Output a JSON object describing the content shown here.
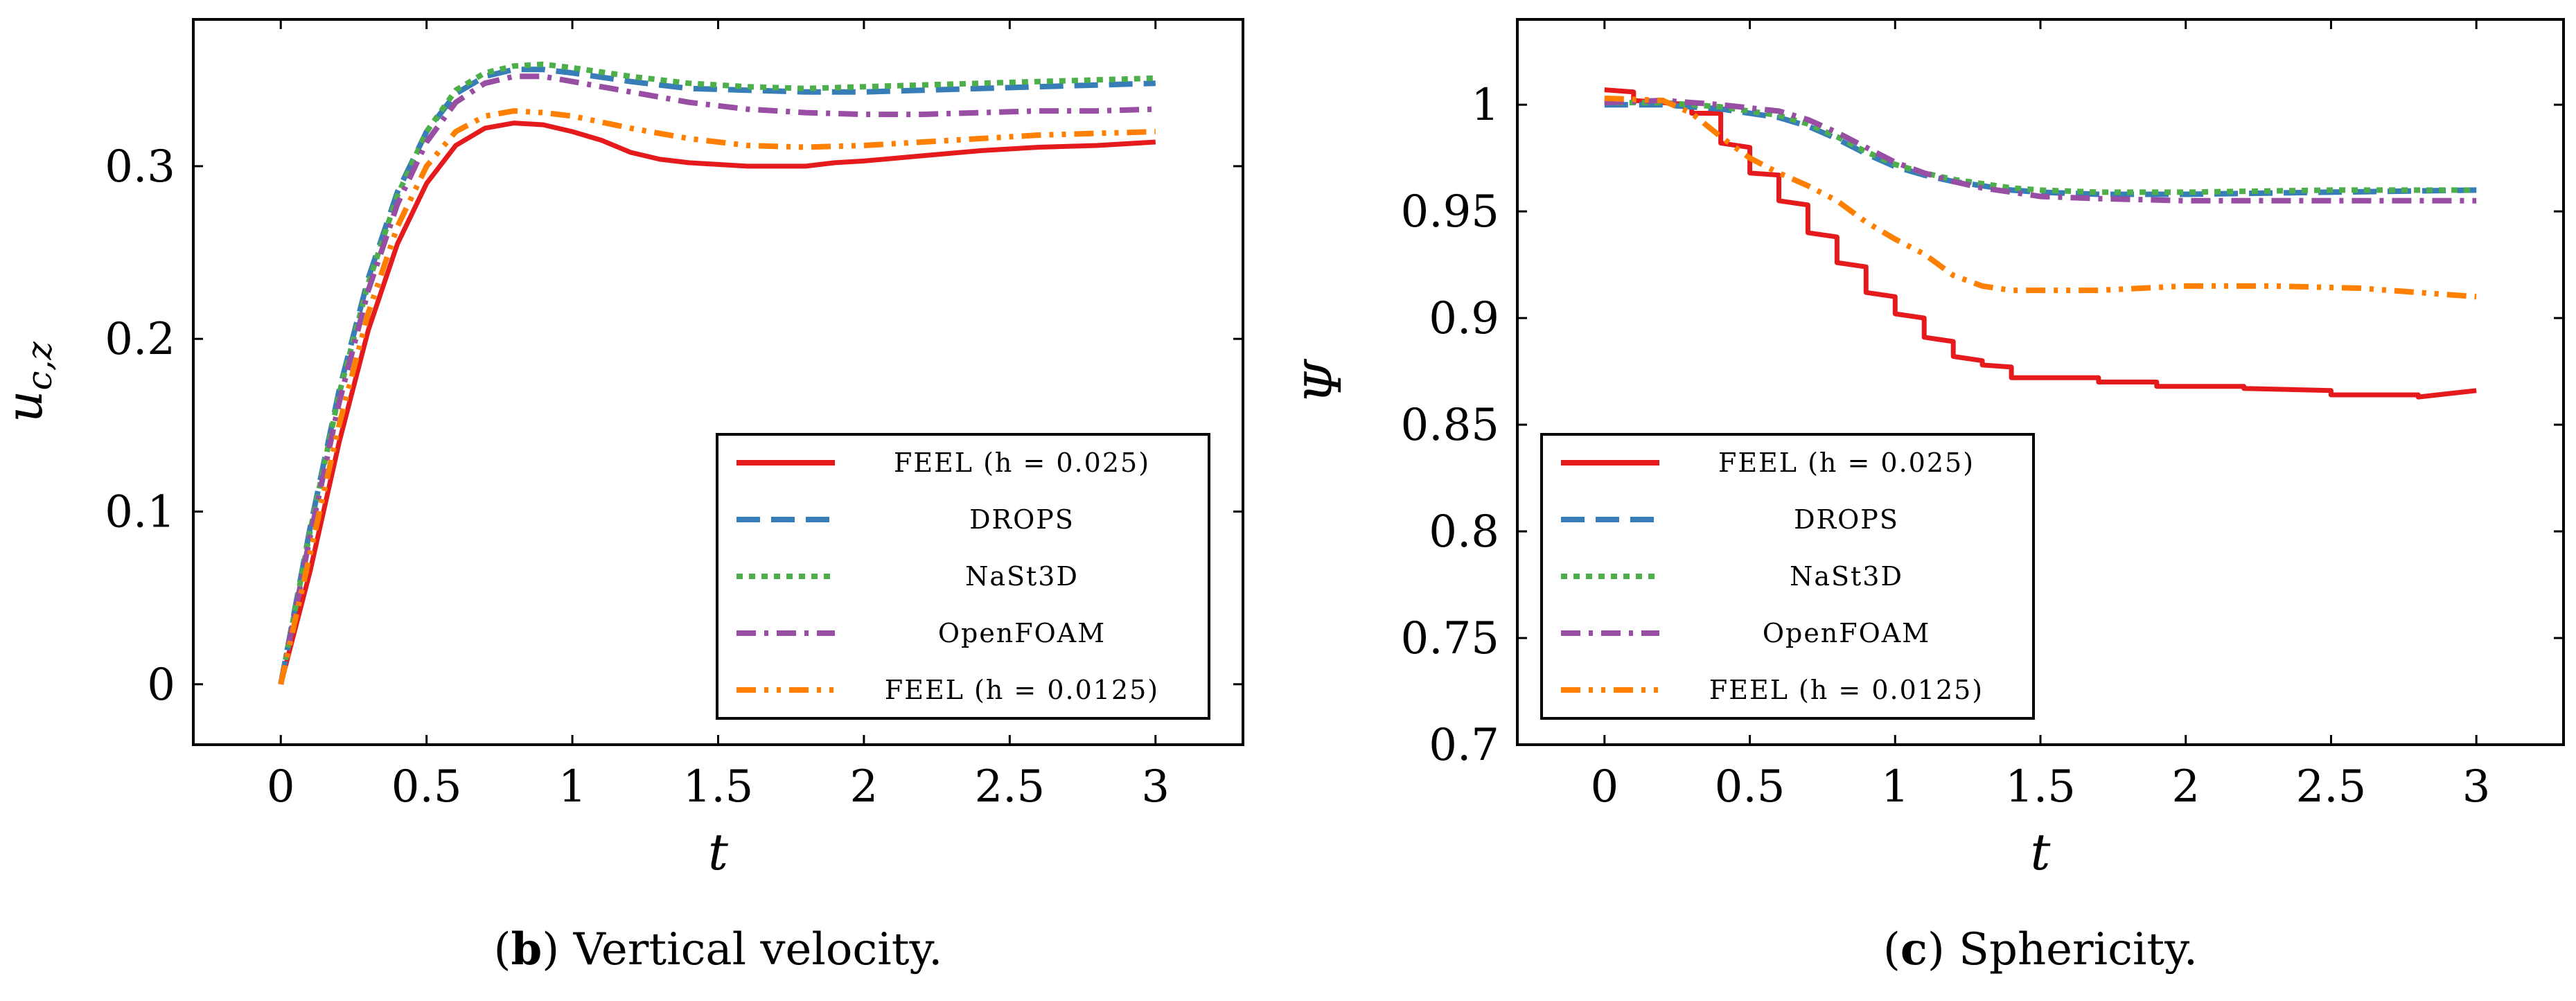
{
  "chart_data": [
    {
      "id": "velocity",
      "type": "line",
      "ylabel": "u_{c,z}",
      "ylabel_parts": {
        "main": "u",
        "sub": "c,z"
      },
      "xlabel": "t",
      "caption": {
        "letter": "b",
        "text": " Vertical velocity."
      },
      "xlim": [
        -0.3,
        3.3
      ],
      "ylim": [
        -0.035,
        0.385
      ],
      "xticks": [
        0,
        0.5,
        1,
        1.5,
        2,
        2.5,
        3
      ],
      "xtick_labels": [
        "0",
        "0.5",
        "1",
        "1.5",
        "2",
        "2.5",
        "3"
      ],
      "yticks": [
        0,
        0.1,
        0.2,
        0.3
      ],
      "ytick_labels": [
        "0",
        "0.1",
        "0.2",
        "0.3"
      ],
      "legend": {
        "position": "bottom-right"
      },
      "series": [
        {
          "name": "FEEL (h = 0.025)",
          "color": "#e41a1c",
          "style": "solid",
          "x": [
            0,
            0.1,
            0.2,
            0.3,
            0.4,
            0.5,
            0.6,
            0.7,
            0.8,
            0.9,
            1.0,
            1.1,
            1.2,
            1.3,
            1.4,
            1.5,
            1.6,
            1.7,
            1.8,
            1.9,
            2.0,
            2.2,
            2.4,
            2.6,
            2.8,
            3.0
          ],
          "values": [
            0,
            0.065,
            0.14,
            0.205,
            0.255,
            0.29,
            0.312,
            0.322,
            0.325,
            0.324,
            0.32,
            0.315,
            0.308,
            0.304,
            0.302,
            0.301,
            0.3,
            0.3,
            0.3,
            0.302,
            0.303,
            0.306,
            0.309,
            0.311,
            0.312,
            0.314
          ]
        },
        {
          "name": "DROPS",
          "color": "#377eb8",
          "style": "dashed",
          "x": [
            0,
            0.1,
            0.2,
            0.3,
            0.4,
            0.5,
            0.6,
            0.7,
            0.8,
            0.9,
            1.0,
            1.2,
            1.4,
            1.6,
            1.8,
            2.0,
            2.2,
            2.4,
            2.6,
            2.8,
            3.0
          ],
          "values": [
            0,
            0.09,
            0.17,
            0.235,
            0.285,
            0.32,
            0.342,
            0.352,
            0.356,
            0.356,
            0.354,
            0.349,
            0.345,
            0.344,
            0.343,
            0.343,
            0.344,
            0.345,
            0.346,
            0.347,
            0.348
          ]
        },
        {
          "name": "NaSt3D",
          "color": "#4daf4a",
          "style": "dotted",
          "x": [
            0,
            0.1,
            0.2,
            0.3,
            0.4,
            0.5,
            0.6,
            0.7,
            0.8,
            0.9,
            1.0,
            1.2,
            1.4,
            1.6,
            1.8,
            2.0,
            2.2,
            2.4,
            2.6,
            2.8,
            3.0
          ],
          "values": [
            0,
            0.088,
            0.168,
            0.232,
            0.283,
            0.32,
            0.344,
            0.354,
            0.358,
            0.359,
            0.357,
            0.352,
            0.348,
            0.346,
            0.345,
            0.346,
            0.347,
            0.348,
            0.349,
            0.35,
            0.351
          ]
        },
        {
          "name": "OpenFOAM",
          "color": "#984ea3",
          "style": "dashdot",
          "x": [
            0,
            0.1,
            0.2,
            0.3,
            0.4,
            0.5,
            0.6,
            0.7,
            0.8,
            0.9,
            1.0,
            1.2,
            1.4,
            1.6,
            1.8,
            2.0,
            2.2,
            2.4,
            2.6,
            2.8,
            3.0
          ],
          "values": [
            0,
            0.085,
            0.163,
            0.228,
            0.278,
            0.314,
            0.337,
            0.348,
            0.352,
            0.352,
            0.349,
            0.343,
            0.337,
            0.333,
            0.331,
            0.33,
            0.33,
            0.331,
            0.332,
            0.332,
            0.333
          ]
        },
        {
          "name": "FEEL (h = 0.0125)",
          "color": "#ff7f00",
          "style": "dashdotdot",
          "x": [
            0,
            0.1,
            0.2,
            0.3,
            0.4,
            0.5,
            0.6,
            0.7,
            0.8,
            0.9,
            1.0,
            1.2,
            1.4,
            1.6,
            1.8,
            2.0,
            2.2,
            2.4,
            2.6,
            2.8,
            3.0
          ],
          "values": [
            0,
            0.075,
            0.15,
            0.215,
            0.265,
            0.3,
            0.32,
            0.329,
            0.332,
            0.331,
            0.329,
            0.322,
            0.316,
            0.312,
            0.311,
            0.312,
            0.314,
            0.316,
            0.318,
            0.319,
            0.32
          ]
        }
      ]
    },
    {
      "id": "sphericity",
      "type": "line",
      "ylabel": "Ψ",
      "xlabel": "t",
      "caption": {
        "letter": "c",
        "text": " Sphericity."
      },
      "xlim": [
        -0.3,
        3.3
      ],
      "ylim": [
        0.7,
        1.04
      ],
      "xticks": [
        0,
        0.5,
        1,
        1.5,
        2,
        2.5,
        3
      ],
      "xtick_labels": [
        "0",
        "0.5",
        "1",
        "1.5",
        "2",
        "2.5",
        "3"
      ],
      "yticks": [
        0.7,
        0.75,
        0.8,
        0.85,
        0.9,
        0.95,
        1
      ],
      "ytick_labels": [
        "0.7",
        "0.75",
        "0.8",
        "0.85",
        "0.9",
        "0.95",
        "1"
      ],
      "legend": {
        "position": "bottom-left"
      },
      "series": [
        {
          "name": "FEEL (h = 0.025)",
          "color": "#e41a1c",
          "style": "solid",
          "x": [
            0,
            0.1,
            0.1,
            0.3,
            0.3,
            0.4,
            0.4,
            0.5,
            0.5,
            0.6,
            0.6,
            0.7,
            0.7,
            0.8,
            0.8,
            0.9,
            0.9,
            1.0,
            1.0,
            1.1,
            1.1,
            1.2,
            1.2,
            1.3,
            1.3,
            1.4,
            1.4,
            1.5,
            1.7,
            1.7,
            1.9,
            1.9,
            2.2,
            2.2,
            2.5,
            2.5,
            2.8,
            2.8,
            3.0
          ],
          "values": [
            1.007,
            1.006,
            1.002,
            1.0,
            0.996,
            0.996,
            0.982,
            0.98,
            0.968,
            0.967,
            0.955,
            0.953,
            0.94,
            0.938,
            0.926,
            0.924,
            0.912,
            0.91,
            0.902,
            0.9,
            0.891,
            0.889,
            0.882,
            0.88,
            0.878,
            0.877,
            0.872,
            0.872,
            0.872,
            0.87,
            0.87,
            0.868,
            0.868,
            0.867,
            0.866,
            0.864,
            0.864,
            0.863,
            0.866
          ]
        },
        {
          "name": "DROPS",
          "color": "#377eb8",
          "style": "dashed",
          "x": [
            0,
            0.2,
            0.4,
            0.6,
            0.7,
            0.8,
            0.9,
            1.0,
            1.1,
            1.2,
            1.3,
            1.4,
            1.5,
            1.7,
            2.0,
            2.5,
            3.0
          ],
          "values": [
            1.0,
            1.0,
            0.998,
            0.994,
            0.99,
            0.984,
            0.977,
            0.971,
            0.967,
            0.964,
            0.962,
            0.96,
            0.959,
            0.958,
            0.958,
            0.959,
            0.96
          ]
        },
        {
          "name": "NaSt3D",
          "color": "#4daf4a",
          "style": "dotted",
          "x": [
            0,
            0.2,
            0.4,
            0.6,
            0.7,
            0.8,
            0.9,
            1.0,
            1.1,
            1.2,
            1.3,
            1.4,
            1.5,
            1.7,
            2.0,
            2.5,
            3.0
          ],
          "values": [
            1.001,
            1.001,
            0.999,
            0.995,
            0.991,
            0.985,
            0.978,
            0.972,
            0.968,
            0.965,
            0.963,
            0.961,
            0.96,
            0.959,
            0.959,
            0.96,
            0.96
          ]
        },
        {
          "name": "OpenFOAM",
          "color": "#984ea3",
          "style": "dashdot",
          "x": [
            0,
            0.2,
            0.4,
            0.6,
            0.7,
            0.8,
            0.9,
            1.0,
            1.1,
            1.2,
            1.3,
            1.4,
            1.5,
            1.7,
            2.0,
            2.5,
            3.0
          ],
          "values": [
            1.001,
            1.002,
            1.0,
            0.997,
            0.993,
            0.987,
            0.98,
            0.973,
            0.968,
            0.964,
            0.961,
            0.959,
            0.957,
            0.956,
            0.955,
            0.955,
            0.955
          ]
        },
        {
          "name": "FEEL (h = 0.0125)",
          "color": "#ff7f00",
          "style": "dashdotdot",
          "x": [
            0,
            0.2,
            0.3,
            0.4,
            0.5,
            0.6,
            0.7,
            0.8,
            0.9,
            1.0,
            1.1,
            1.2,
            1.3,
            1.4,
            1.5,
            1.7,
            2.0,
            2.3,
            2.6,
            2.8,
            3.0
          ],
          "values": [
            1.003,
            1.002,
            0.996,
            0.985,
            0.975,
            0.968,
            0.962,
            0.955,
            0.945,
            0.937,
            0.93,
            0.92,
            0.915,
            0.913,
            0.913,
            0.913,
            0.915,
            0.915,
            0.914,
            0.912,
            0.91
          ]
        }
      ]
    }
  ]
}
